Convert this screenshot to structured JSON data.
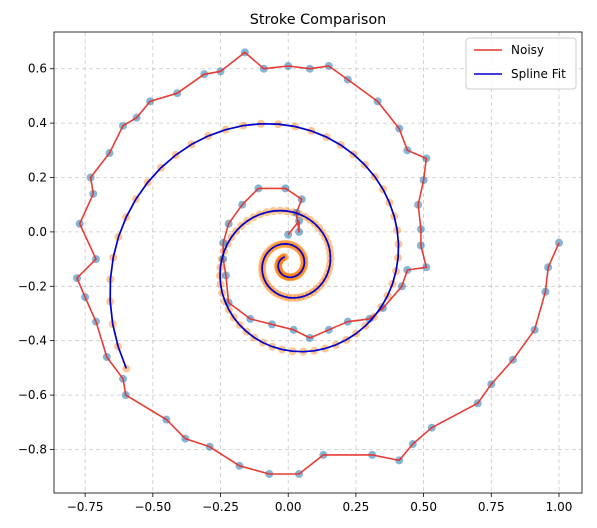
{
  "chart_data": {
    "type": "line",
    "title": "Stroke Comparison",
    "xlabel": "",
    "ylabel": "",
    "xlim": [
      -0.865,
      1.085
    ],
    "ylim": [
      -0.96,
      0.735
    ],
    "grid": true,
    "grid_style": "dashed",
    "legend_position": "top-right",
    "x_ticks": [
      -0.75,
      -0.5,
      -0.25,
      0.0,
      0.25,
      0.5,
      0.75,
      1.0
    ],
    "x_tick_labels": [
      "−0.75",
      "−0.50",
      "−0.25",
      "0.00",
      "0.25",
      "0.50",
      "0.75",
      "1.00"
    ],
    "y_ticks": [
      -0.8,
      -0.6,
      -0.4,
      -0.2,
      0.0,
      0.2,
      0.4,
      0.6
    ],
    "y_tick_labels": [
      "−0.8",
      "−0.6",
      "−0.4",
      "−0.2",
      "0.0",
      "0.2",
      "0.4",
      "0.6"
    ],
    "colors": {
      "noisy": "#e8302a",
      "spline": "#0000cc",
      "noisy_points": "#1f77b4",
      "spline_points": "#ff7f0e"
    },
    "series": [
      {
        "name": "Noisy",
        "role": "noisy",
        "points": [
          [
            0.0,
            -0.01
          ],
          [
            0.04,
            0.04
          ],
          [
            0.04,
            0.0
          ],
          [
            0.03,
            0.07
          ],
          [
            0.05,
            0.12
          ],
          [
            -0.01,
            0.16
          ],
          [
            -0.11,
            0.16
          ],
          [
            -0.17,
            0.1
          ],
          [
            -0.22,
            0.03
          ],
          [
            -0.24,
            -0.04
          ],
          [
            -0.24,
            -0.1
          ],
          [
            -0.23,
            -0.16
          ],
          [
            -0.22,
            -0.26
          ],
          [
            -0.14,
            -0.32
          ],
          [
            -0.06,
            -0.34
          ],
          [
            0.02,
            -0.36
          ],
          [
            0.08,
            -0.39
          ],
          [
            0.15,
            -0.36
          ],
          [
            0.22,
            -0.33
          ],
          [
            0.3,
            -0.32
          ],
          [
            0.35,
            -0.28
          ],
          [
            0.42,
            -0.2
          ],
          [
            0.44,
            -0.14
          ],
          [
            0.51,
            -0.13
          ],
          [
            0.49,
            -0.05
          ],
          [
            0.49,
            0.01
          ],
          [
            0.48,
            0.1
          ],
          [
            0.5,
            0.19
          ],
          [
            0.51,
            0.27
          ],
          [
            0.44,
            0.3
          ],
          [
            0.41,
            0.38
          ],
          [
            0.33,
            0.48
          ],
          [
            0.22,
            0.56
          ],
          [
            0.15,
            0.61
          ],
          [
            0.08,
            0.6
          ],
          [
            0.0,
            0.61
          ],
          [
            -0.09,
            0.6
          ],
          [
            -0.16,
            0.66
          ],
          [
            -0.25,
            0.59
          ],
          [
            -0.31,
            0.58
          ],
          [
            -0.41,
            0.51
          ],
          [
            -0.51,
            0.48
          ],
          [
            -0.56,
            0.42
          ],
          [
            -0.61,
            0.39
          ],
          [
            -0.66,
            0.29
          ],
          [
            -0.73,
            0.2
          ],
          [
            -0.72,
            0.14
          ],
          [
            -0.77,
            0.03
          ],
          [
            -0.71,
            -0.1
          ],
          [
            -0.78,
            -0.17
          ],
          [
            -0.75,
            -0.24
          ],
          [
            -0.71,
            -0.33
          ],
          [
            -0.67,
            -0.46
          ],
          [
            -0.61,
            -0.54
          ],
          [
            -0.6,
            -0.6
          ],
          [
            -0.45,
            -0.69
          ],
          [
            -0.38,
            -0.76
          ],
          [
            -0.29,
            -0.79
          ],
          [
            -0.18,
            -0.86
          ],
          [
            -0.07,
            -0.89
          ],
          [
            0.04,
            -0.89
          ],
          [
            0.13,
            -0.82
          ],
          [
            0.31,
            -0.82
          ],
          [
            0.41,
            -0.84
          ],
          [
            0.46,
            -0.78
          ],
          [
            0.53,
            -0.72
          ],
          [
            0.7,
            -0.63
          ],
          [
            0.75,
            -0.56
          ],
          [
            0.83,
            -0.47
          ],
          [
            0.91,
            -0.36
          ],
          [
            0.95,
            -0.22
          ],
          [
            0.96,
            -0.13
          ],
          [
            1.0,
            -0.04
          ]
        ]
      },
      {
        "name": "Spline Fit",
        "role": "spline",
        "spiral": {
          "center": [
            0.0,
            -0.12
          ],
          "a": 0.0226,
          "b": 0.1528,
          "theta_start": 2.0,
          "theta_end": 22.56,
          "samples": 170
        }
      }
    ]
  }
}
